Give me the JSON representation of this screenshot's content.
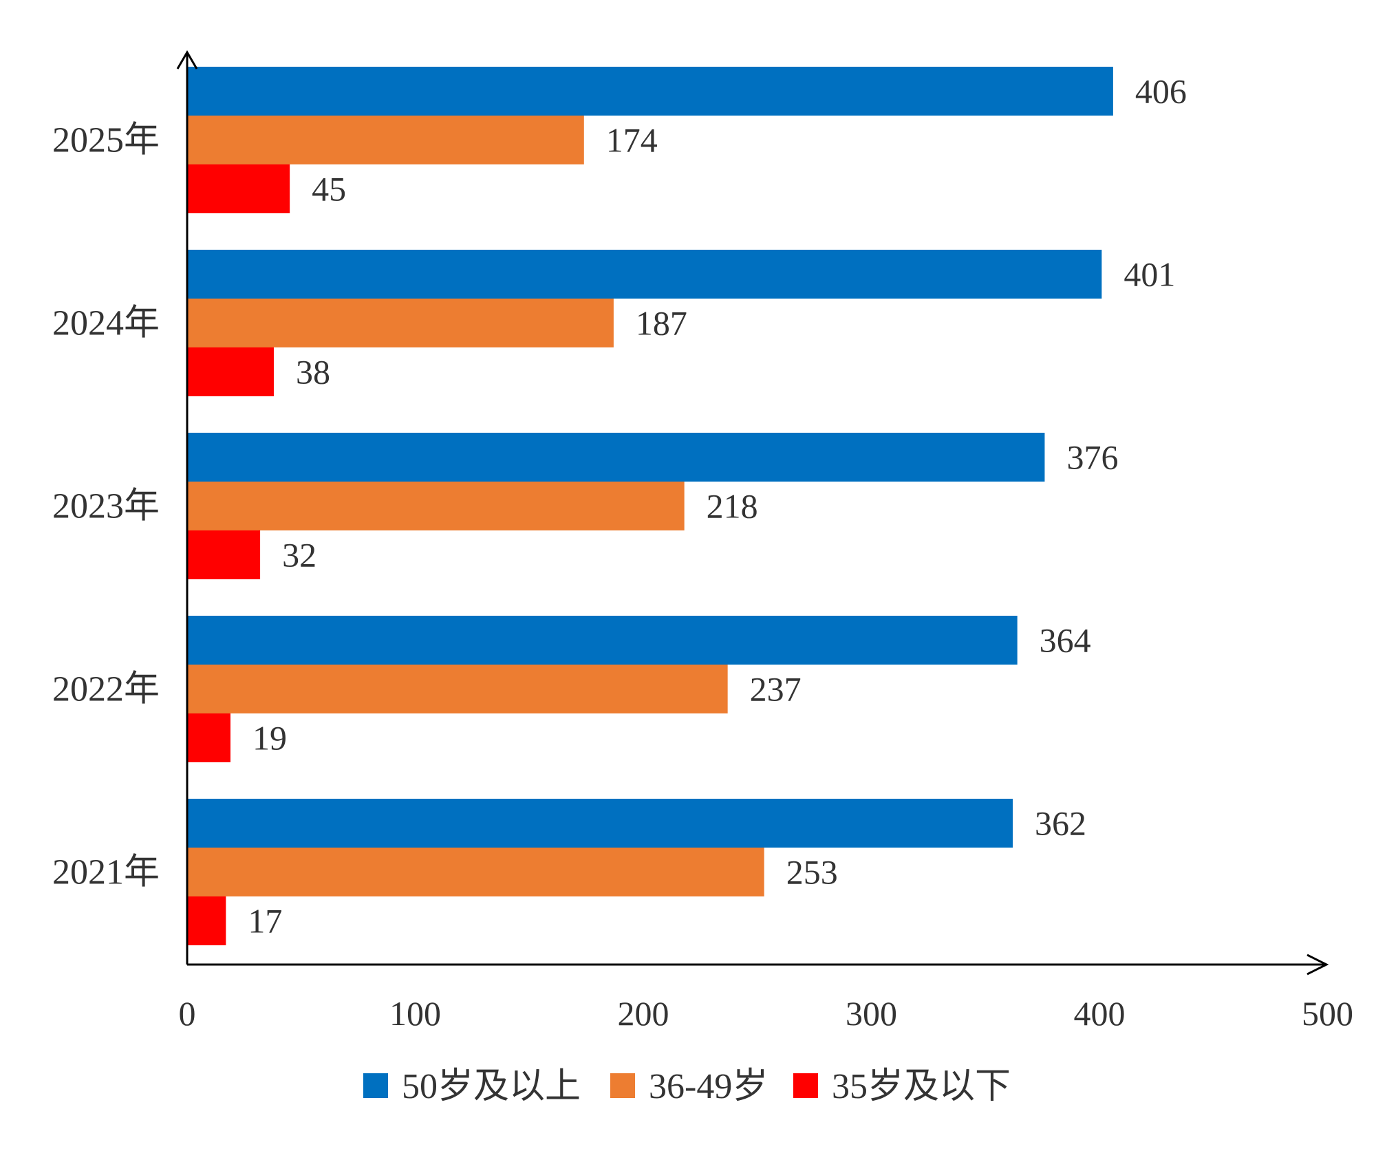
{
  "chart_data": {
    "type": "bar",
    "orientation": "horizontal",
    "categories": [
      "2025年",
      "2024年",
      "2023年",
      "2022年",
      "2021年"
    ],
    "series": [
      {
        "name": "50岁及以上",
        "color": "#0070C0",
        "values": [
          406,
          401,
          376,
          364,
          362
        ]
      },
      {
        "name": "36-49岁",
        "color": "#ED7D31",
        "values": [
          174,
          187,
          218,
          237,
          253
        ]
      },
      {
        "name": "35岁及以下",
        "color": "#FF0000",
        "values": [
          45,
          38,
          32,
          19,
          17
        ]
      }
    ],
    "xlim": [
      0,
      500
    ],
    "xticks": [
      "0",
      "100",
      "200",
      "300",
      "400",
      "500"
    ],
    "grid": false,
    "legend": "bottom",
    "data_labels": true
  }
}
